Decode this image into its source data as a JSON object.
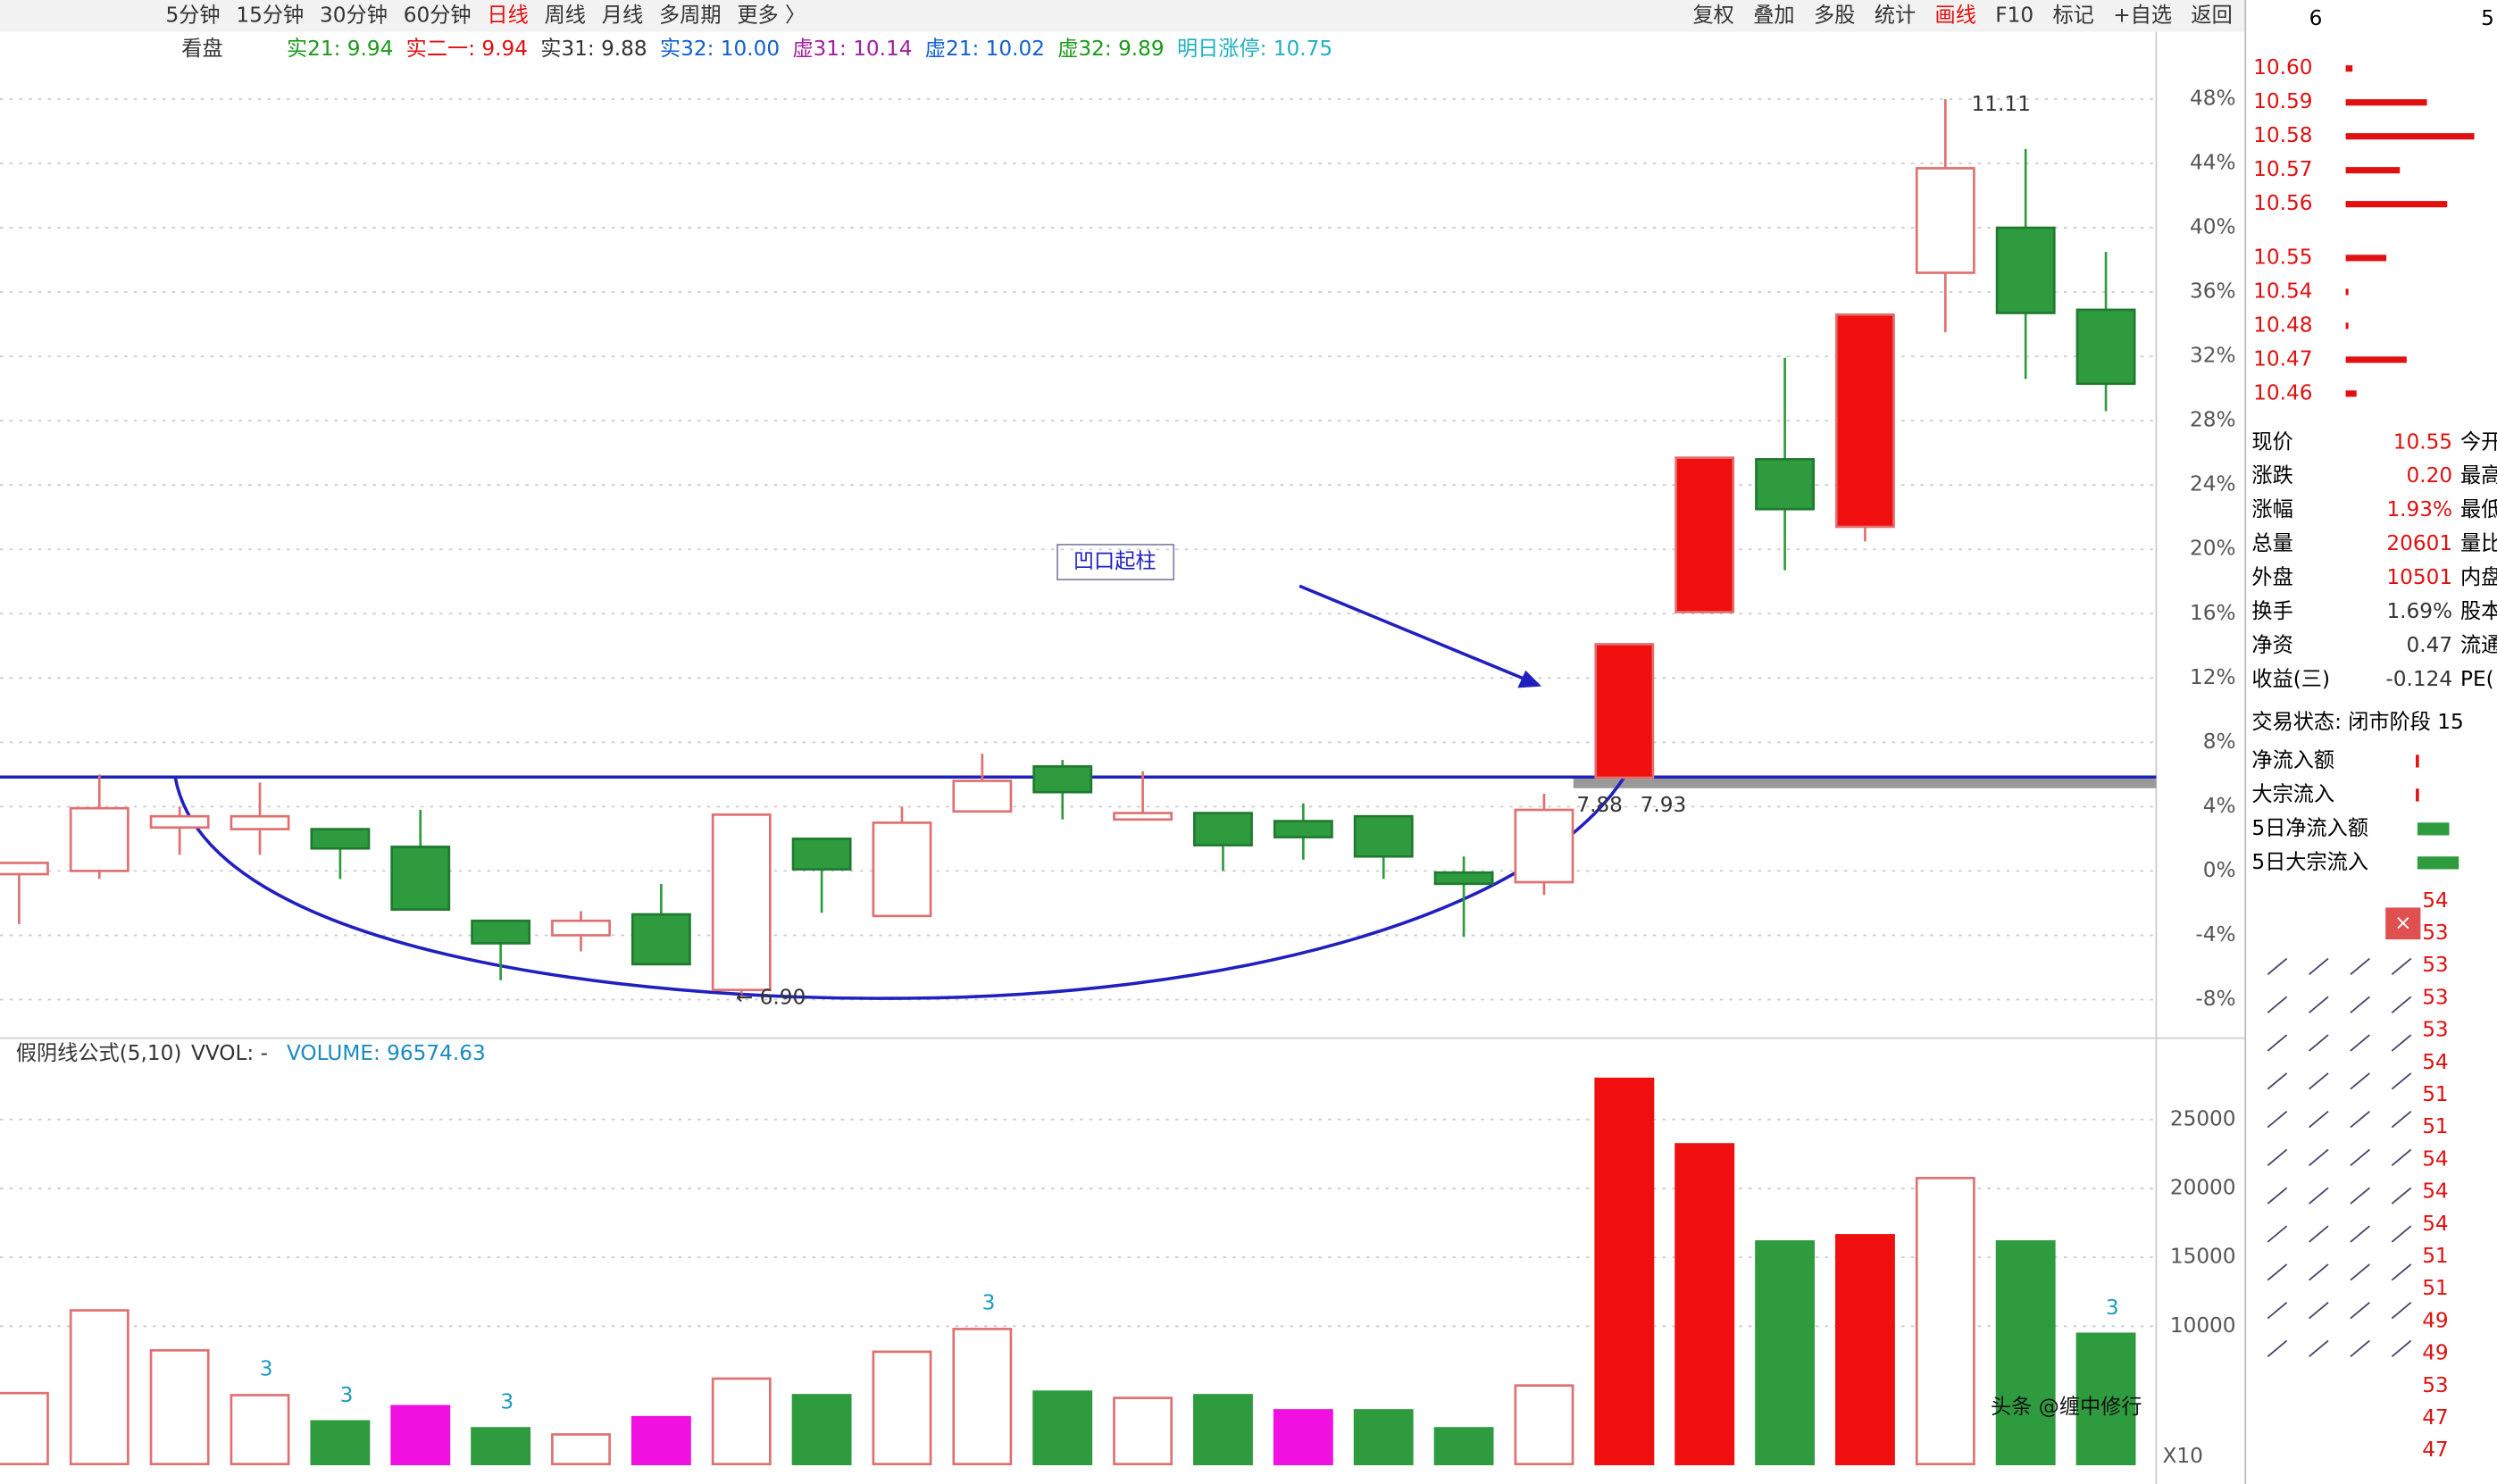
{
  "toolbar": {
    "periods": [
      "5分钟",
      "15分钟",
      "30分钟",
      "60分钟",
      "日线",
      "周线",
      "月线",
      "多周期",
      "更多 〉"
    ],
    "active_period": 4,
    "tools": [
      "复权",
      "叠加",
      "多股",
      "统计",
      "画线",
      "F10",
      "标记",
      "+自选",
      "返回"
    ],
    "active_tool": 4,
    "corner": [
      "6",
      "5"
    ]
  },
  "indicators": {
    "label": "看盘",
    "items": [
      {
        "text": "实21: 9.94",
        "color": "#1a9a1a"
      },
      {
        "text": "实二一: 9.94",
        "color": "#e01010"
      },
      {
        "text": "实31: 9.88",
        "color": "#333333"
      },
      {
        "text": "实32: 10.00",
        "color": "#1060d0"
      },
      {
        "text": "虚31: 10.14",
        "color": "#a020a0"
      },
      {
        "text": "虚21: 10.02",
        "color": "#1060d0"
      },
      {
        "text": "虚32: 9.89",
        "color": "#1a9a1a"
      },
      {
        "text": "明日涨停: 10.75",
        "color": "#20b0c0"
      }
    ]
  },
  "chart_data": {
    "type": "candlestick",
    "open": [
      -0.2,
      0,
      2.7,
      2.6,
      2.6,
      1.5,
      -3.1,
      -4,
      -2.7,
      -7.4,
      2,
      -2.8,
      3.7,
      6.5,
      3.2,
      3.6,
      3.1,
      3.4,
      -0.1,
      -0.7,
      5.8,
      16.1,
      25.6,
      21.4,
      37.2,
      40,
      34.9
    ],
    "close": [
      0.5,
      3.9,
      3.4,
      3.4,
      1.4,
      -2.4,
      -4.5,
      -3.1,
      -5.8,
      3.5,
      0.1,
      3,
      5.6,
      4.9,
      3.6,
      1.6,
      2.1,
      0.9,
      -0.8,
      3.8,
      14.1,
      25.7,
      22.5,
      34.6,
      43.7,
      34.7,
      30.3
    ],
    "high": [
      0.5,
      6,
      4,
      5.5,
      2.6,
      3.8,
      -3.1,
      -2.5,
      -0.8,
      3.5,
      2,
      4,
      7.3,
      6.9,
      6.2,
      3.6,
      4.2,
      3.4,
      0.9,
      4.8,
      14.1,
      25.7,
      31.9,
      34.6,
      48,
      44.9,
      38.5
    ],
    "low": [
      -3.3,
      -0.5,
      1,
      1,
      -0.5,
      -2.4,
      -6.8,
      -5,
      -5.8,
      -7.7,
      -2.6,
      -2.8,
      3.7,
      3.2,
      3.2,
      0,
      0.7,
      -0.5,
      -4.1,
      -1.5,
      5.8,
      16.1,
      18.7,
      20.5,
      33.5,
      30.6,
      28.6
    ],
    "ylim": [
      -10.2,
      50.2
    ],
    "yticks": [
      {
        "value": 48,
        "label": "48%"
      },
      {
        "value": 44,
        "label": "44%"
      },
      {
        "value": 40,
        "label": "40%"
      },
      {
        "value": 36,
        "label": "36%"
      },
      {
        "value": 32,
        "label": "32%"
      },
      {
        "value": 28,
        "label": "28%"
      },
      {
        "value": 24,
        "label": "24%"
      },
      {
        "value": 20,
        "label": "20%"
      },
      {
        "value": 16,
        "label": "16%"
      },
      {
        "value": 12,
        "label": "12%"
      },
      {
        "value": 8,
        "label": "8%"
      },
      {
        "value": 4,
        "label": "4%"
      },
      {
        "value": 0,
        "label": "0%"
      },
      {
        "value": -4,
        "label": "-4%"
      },
      {
        "value": -8,
        "label": "-8%"
      }
    ],
    "annotations": {
      "pattern": "凹口起柱",
      "high_label": "11.11",
      "low_label": "← 6.90",
      "neck_left": "7.88",
      "neck_right": "7.93"
    },
    "volume": {
      "header": "假阴线公式(5,10)",
      "vvol": "VVOL: -",
      "total": "VOLUME: 96574.63",
      "values": [
        5150,
        11150,
        8250,
        5000,
        3100,
        4200,
        2600,
        2150,
        3400,
        6200,
        5000,
        8150,
        9800,
        5250,
        4800,
        5000,
        3900,
        3900,
        2600,
        5700,
        27950,
        23200,
        16150,
        16600,
        20750,
        16150,
        9450
      ],
      "styles": [
        "hollow",
        "hollow",
        "hollow",
        "hollow",
        "green",
        "magenta",
        "green",
        "hollow",
        "magenta",
        "hollow",
        "green",
        "hollow",
        "hollow",
        "green",
        "hollow",
        "green",
        "magenta",
        "green",
        "green",
        "hollow",
        "red",
        "red",
        "green",
        "red",
        "hollow",
        "green",
        "green"
      ],
      "marks": [
        {
          "index": 3,
          "text": "3"
        },
        {
          "index": 4,
          "text": "3"
        },
        {
          "index": 6,
          "text": "3"
        },
        {
          "index": 12,
          "text": "3"
        },
        {
          "index": 26,
          "text": "3"
        }
      ],
      "ylim": [
        0,
        29400
      ],
      "yticks": [
        25000,
        20000,
        15000,
        10000
      ],
      "scale_label": "X10"
    }
  },
  "order_book": {
    "asks": [
      {
        "price": "10.60",
        "size": 5
      },
      {
        "price": "10.59",
        "size": 60
      },
      {
        "price": "10.58",
        "size": 95
      },
      {
        "price": "10.57",
        "size": 40
      },
      {
        "price": "10.56",
        "size": 75
      }
    ],
    "bids": [
      {
        "price": "10.55",
        "size": 30
      },
      {
        "price": "10.54",
        "size": 2
      },
      {
        "price": "10.48",
        "size": 2
      },
      {
        "price": "10.47",
        "size": 45
      },
      {
        "price": "10.46",
        "size": 8
      }
    ]
  },
  "quote": [
    [
      "现价",
      "10.55",
      "今开"
    ],
    [
      "涨跌",
      "0.20",
      "最高"
    ],
    [
      "涨幅",
      "1.93%",
      "最低"
    ],
    [
      "总量",
      "20601",
      "量比"
    ],
    [
      "外盘",
      "10501",
      "内盘"
    ],
    [
      "换手",
      "1.69%",
      "股本"
    ],
    [
      "净资",
      "0.47",
      "流通"
    ],
    [
      "收益(三)",
      "-0.124",
      "PE("
    ]
  ],
  "status": "交易状态: 闭市阶段 15",
  "flows": [
    "净流入额",
    "大宗流入",
    "5日净流入额",
    "5日大宗流入"
  ],
  "side_numbers": [
    "54",
    "53",
    "53",
    "53",
    "53",
    "54",
    "51",
    "51",
    "54",
    "54",
    "54",
    "51",
    "51",
    "49",
    "49",
    "53",
    "47",
    "47"
  ],
  "watermark": "头条 @缠中修行"
}
